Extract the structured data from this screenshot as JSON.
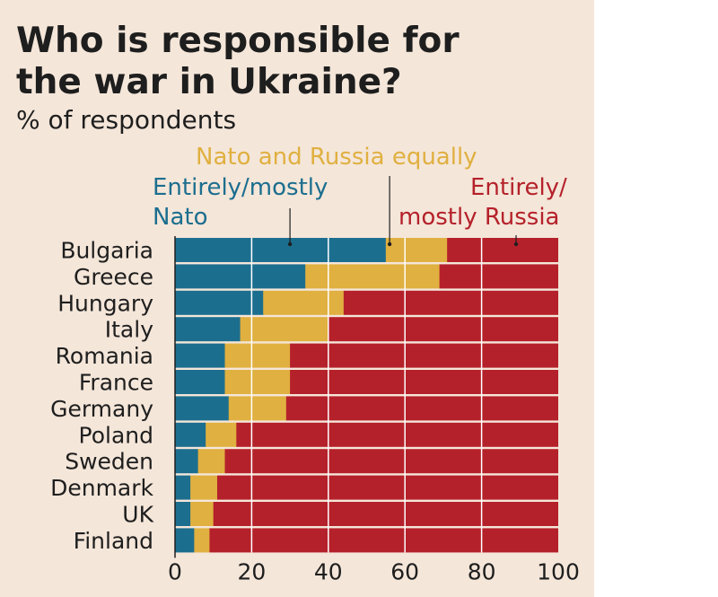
{
  "chart_data": {
    "type": "bar",
    "stacked": true,
    "orientation": "horizontal",
    "title": "Who is responsible for the war in Ukraine?",
    "title_lines": [
      "Who is responsible for",
      "the war in Ukraine?"
    ],
    "subtitle": "% of respondents",
    "categories": [
      "Bulgaria",
      "Greece",
      "Hungary",
      "Italy",
      "Romania",
      "France",
      "Germany",
      "Poland",
      "Sweden",
      "Denmark",
      "UK",
      "Finland"
    ],
    "series": [
      {
        "name": "Entirely/mostly Nato",
        "legend_lines": [
          "Entirely/mostly",
          "Nato"
        ],
        "color": "#1c6e8f",
        "values": [
          55,
          34,
          23,
          17,
          13,
          13,
          14,
          8,
          6,
          4,
          4,
          5
        ]
      },
      {
        "name": "Nato and Russia equally",
        "legend_lines": [
          "Nato and Russia equally"
        ],
        "color": "#e0b040",
        "values": [
          16,
          35,
          21,
          23,
          17,
          17,
          15,
          8,
          7,
          7,
          6,
          4
        ]
      },
      {
        "name": "Entirely/mostly Russia",
        "legend_lines": [
          "Entirely/",
          "mostly Russia"
        ],
        "color": "#b5212a",
        "values": [
          29,
          31,
          56,
          60,
          70,
          70,
          71,
          84,
          87,
          89,
          90,
          91
        ]
      }
    ],
    "legend_pointer_values": [
      30,
      56,
      89
    ],
    "xlim": [
      0,
      100
    ],
    "xticks": [
      0,
      20,
      40,
      60,
      80,
      100
    ],
    "xlabel": "",
    "ylabel": "",
    "grid": true,
    "legend": "top"
  },
  "colors": {
    "background": "#f4e6d9",
    "text": "#1e1e1e",
    "grid": "#ffffff"
  }
}
